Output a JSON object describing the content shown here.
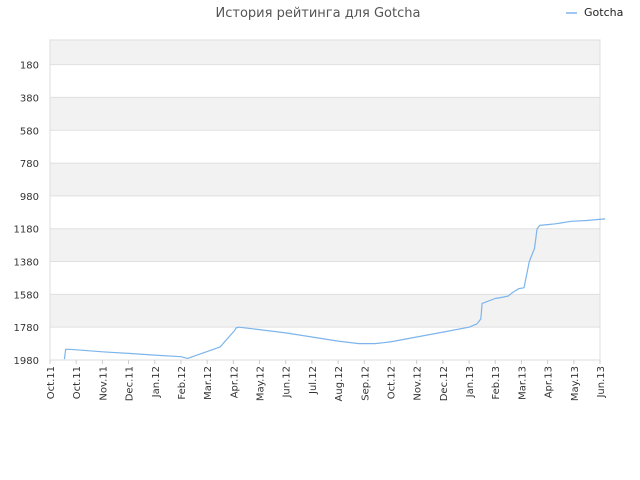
{
  "chart_data": {
    "type": "line",
    "title": "История рейтинга для Gotcha",
    "xlabel": "",
    "ylabel": "",
    "y_inverted": true,
    "ylim": [
      1980,
      30
    ],
    "yticks": [
      180,
      380,
      580,
      780,
      980,
      1180,
      1380,
      1580,
      1780,
      1980
    ],
    "xticks": [
      "Oct.11",
      "Oct.11",
      "Nov.11",
      "Dec.11",
      "Jan.12",
      "Feb.12",
      "Mar.12",
      "Apr.12",
      "May.12",
      "Jun.12",
      "Jul.12",
      "Aug.12",
      "Sep.12",
      "Oct.12",
      "Nov.12",
      "Dec.12",
      "Jan.13",
      "Feb.13",
      "Mar.13",
      "Apr.13",
      "May.13",
      "Jun.13"
    ],
    "grid": true,
    "legend_position": "top-right",
    "colors": {
      "series": "#7cb5ec",
      "band": "#f2f2f2",
      "grid": "#e0e0e0"
    },
    "series": [
      {
        "name": "Gotcha",
        "x": [
          0.55,
          0.6,
          0.75,
          1.2,
          2.0,
          3.0,
          4.0,
          5.0,
          5.25,
          6.5,
          7.05,
          7.1,
          7.2,
          8.0,
          9.0,
          10.0,
          11.0,
          11.8,
          12.0,
          12.4,
          12.7,
          13.0,
          14.0,
          15.0,
          16.0,
          16.3,
          16.4,
          16.45,
          16.5,
          17.0,
          17.2,
          17.5,
          17.65,
          17.9,
          18.1,
          18.3,
          18.5,
          18.6,
          18.7,
          19.0,
          19.3,
          19.5,
          19.9,
          20.5,
          21.2
        ],
        "values": [
          1975,
          1915,
          1915,
          1920,
          1930,
          1940,
          1950,
          1960,
          1970,
          1900,
          1800,
          1785,
          1780,
          1795,
          1815,
          1840,
          1865,
          1880,
          1880,
          1880,
          1875,
          1870,
          1840,
          1810,
          1780,
          1760,
          1740,
          1730,
          1635,
          1605,
          1600,
          1590,
          1570,
          1545,
          1540,
          1380,
          1300,
          1180,
          1160,
          1155,
          1150,
          1145,
          1135,
          1130,
          1120
        ]
      }
    ]
  }
}
